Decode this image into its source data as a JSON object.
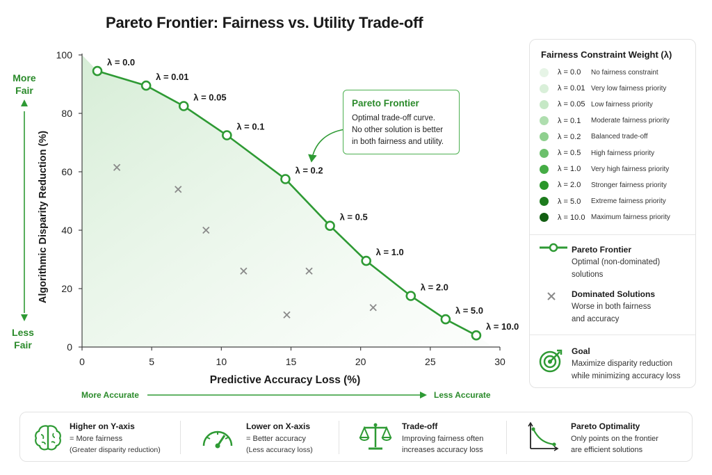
{
  "title": "Pareto Frontier: Fairness vs. Utility Trade-off",
  "colors": {
    "accent": "#2e9a34",
    "accent_light": "#4caf50",
    "dominated": "#8a8a8a",
    "fill": "#e3f3e3"
  },
  "chart_data": {
    "type": "scatter",
    "xlabel": "Predictive Accuracy Loss (%)",
    "ylabel": "Algorithmic Disparity Reduction (%)",
    "xlim": [
      0,
      30
    ],
    "ylim": [
      0,
      100
    ],
    "x_ticks": [
      0,
      5,
      10,
      15,
      20,
      25,
      30
    ],
    "y_ticks": [
      0,
      20,
      40,
      60,
      80,
      100
    ],
    "grid": false,
    "series": [
      {
        "name": "Pareto Frontier",
        "type": "line",
        "points": [
          {
            "x": 1.1,
            "y": 94.5,
            "label": "λ = 0.0"
          },
          {
            "x": 4.6,
            "y": 89.5,
            "label": "λ = 0.01"
          },
          {
            "x": 7.3,
            "y": 82.5,
            "label": "λ = 0.05"
          },
          {
            "x": 10.4,
            "y": 72.5,
            "label": "λ = 0.1"
          },
          {
            "x": 14.6,
            "y": 57.5,
            "label": "λ = 0.2"
          },
          {
            "x": 17.8,
            "y": 41.5,
            "label": "λ = 0.5"
          },
          {
            "x": 20.4,
            "y": 29.5,
            "label": "λ = 1.0"
          },
          {
            "x": 23.6,
            "y": 17.5,
            "label": "λ = 2.0"
          },
          {
            "x": 26.1,
            "y": 9.5,
            "label": "λ = 5.0"
          },
          {
            "x": 28.3,
            "y": 4.0,
            "label": "λ = 10.0"
          }
        ]
      },
      {
        "name": "Dominated Solutions",
        "type": "scatter",
        "points": [
          {
            "x": 2.5,
            "y": 61.5
          },
          {
            "x": 6.9,
            "y": 54.0
          },
          {
            "x": 8.9,
            "y": 40.0
          },
          {
            "x": 11.6,
            "y": 26.0
          },
          {
            "x": 16.3,
            "y": 26.0
          },
          {
            "x": 14.7,
            "y": 11.0
          },
          {
            "x": 20.9,
            "y": 13.5
          }
        ]
      }
    ],
    "side_labels": {
      "top": [
        "More",
        "Fair"
      ],
      "bottom": [
        "Less",
        "Fair"
      ]
    },
    "x_direction": {
      "left": "More Accurate",
      "right": "Less Accurate"
    },
    "callout": {
      "title": "Pareto Frontier",
      "lines": [
        "Optimal trade-off curve.",
        "No other solution is better",
        "in both fairness and utility."
      ]
    }
  },
  "legend": {
    "title": "Fairness Constraint Weight (λ)",
    "lambdas": [
      {
        "value": "λ = 0.0",
        "desc": "No fairness constraint",
        "color": "#e6f4e6"
      },
      {
        "value": "λ = 0.01",
        "desc": "Very low fairness priority",
        "color": "#d9efd9"
      },
      {
        "value": "λ = 0.05",
        "desc": "Low fairness priority",
        "color": "#c6e8c6"
      },
      {
        "value": "λ = 0.1",
        "desc": "Moderate fairness priority",
        "color": "#afdeaf"
      },
      {
        "value": "λ = 0.2",
        "desc": "Balanced trade-off",
        "color": "#8fd08f"
      },
      {
        "value": "λ = 0.5",
        "desc": "High fairness priority",
        "color": "#6cc06c"
      },
      {
        "value": "λ = 1.0",
        "desc": "Very high fairness priority",
        "color": "#45ac45"
      },
      {
        "value": "λ = 2.0",
        "desc": "Stronger fairness priority",
        "color": "#2a962a"
      },
      {
        "value": "λ = 5.0",
        "desc": "Extreme fairness priority",
        "color": "#1d7b1d"
      },
      {
        "value": "λ = 10.0",
        "desc": "Maximum fairness priority",
        "color": "#125e12"
      }
    ],
    "frontier": {
      "title": "Pareto Frontier",
      "text": [
        "Optimal (non-dominated)",
        "solutions"
      ]
    },
    "dominated": {
      "title": "Dominated Solutions",
      "text": [
        "Worse in both fairness",
        "and accuracy"
      ]
    },
    "goal": {
      "title": "Goal",
      "text": [
        "Maximize disparity reduction",
        "while minimizing accuracy loss"
      ]
    }
  },
  "footer": [
    {
      "icon": "brain-icon",
      "title": "Higher on Y-axis",
      "lines": [
        "= More fairness",
        "(Greater disparity reduction)"
      ]
    },
    {
      "icon": "gauge-icon",
      "title": "Lower on X-axis",
      "lines": [
        "= Better accuracy",
        "(Less accuracy loss)"
      ]
    },
    {
      "icon": "scale-icon",
      "title": "Trade-off",
      "lines": [
        "Improving fairness often",
        "increases accuracy loss"
      ]
    },
    {
      "icon": "pareto-curve-icon",
      "title": "Pareto Optimality",
      "lines": [
        "Only points on the frontier",
        "are efficient solutions"
      ]
    }
  ]
}
